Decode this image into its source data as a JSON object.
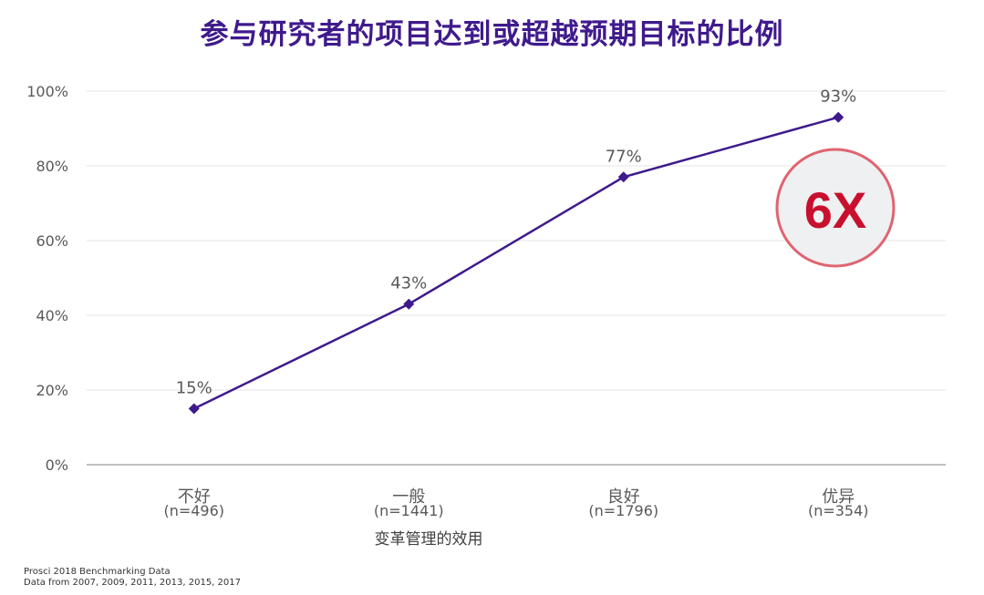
{
  "colors": {
    "title": "#3f1a8c",
    "series": "#3f1a8c",
    "badge_text": "#c8102e",
    "badge_border": "#e06470",
    "badge_fill": "#eef0f1",
    "grid": "#e6e6e6",
    "axis": "#7f7f7f",
    "text": "#595959"
  },
  "footnote": {
    "line1": "Prosci 2018 Benchmarking Data",
    "line2": "Data from 2007, 2009, 2011, 2013, 2015,  2017"
  },
  "badge": {
    "text": "6X"
  },
  "chart_data": {
    "type": "line",
    "title": "参与研究者的项目达到或超越预期目标的比例",
    "xlabel": "变革管理的效用",
    "ylabel": "",
    "categories": [
      "不好",
      "一般",
      "良好",
      "优异"
    ],
    "category_counts": [
      "(n=496)",
      "(n=1441)",
      "(n=1796)",
      "(n=354)"
    ],
    "values": [
      15,
      43,
      77,
      93
    ],
    "data_labels": [
      "15%",
      "43%",
      "77%",
      "93%"
    ],
    "ylim": [
      0,
      100
    ],
    "yticks": [
      0,
      20,
      40,
      60,
      80,
      100
    ],
    "ytick_labels": [
      "0%",
      "20%",
      "40%",
      "60%",
      "80%",
      "100%"
    ],
    "grid": true,
    "legend": "none",
    "marker": "diamond"
  }
}
